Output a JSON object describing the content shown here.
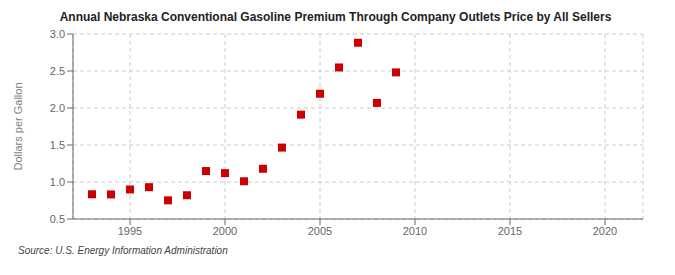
{
  "chart_data": {
    "type": "scatter",
    "title": "Annual Nebraska Conventional Gasoline Premium Through Company Outlets Price by All Sellers",
    "ylabel": "Dollars per Gallon",
    "annotations": [
      "Source: U.S. Energy Information Administration"
    ],
    "x": [
      1993,
      1994,
      1995,
      1996,
      1997,
      1998,
      1999,
      2000,
      2001,
      2002,
      2003,
      2004,
      2005,
      2006,
      2007,
      2008,
      2009
    ],
    "values": [
      0.834,
      0.832,
      0.899,
      0.93,
      0.752,
      0.821,
      1.148,
      1.12,
      1.01,
      1.179,
      1.465,
      1.91,
      2.193,
      2.548,
      2.882,
      2.069,
      2.481
    ],
    "color": "#cc0000",
    "marker": "square",
    "xlim": [
      1992,
      2022
    ],
    "xticks": [
      1995,
      2000,
      2005,
      2010,
      2015,
      2020
    ],
    "ylim": [
      0.5,
      3.0
    ],
    "yticks": [
      0.5,
      {
        "value": 1,
        "label": "1.0"
      },
      1.5,
      {
        "value": 2,
        "label": "2.0"
      },
      2.5,
      {
        "value": 3,
        "label": "3.0"
      }
    ],
    "grid": true
  }
}
